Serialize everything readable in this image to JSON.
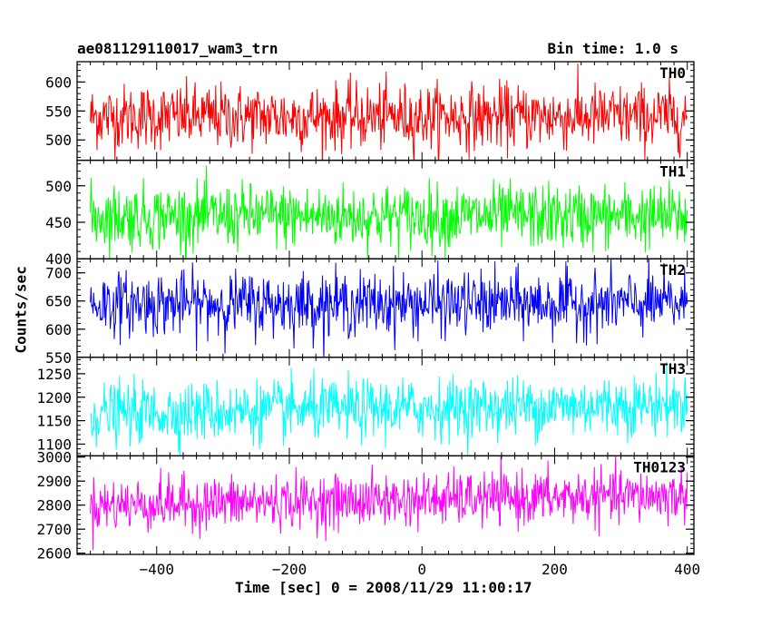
{
  "header": {
    "title": "ae081129110017_wam3_trn",
    "bin_time": "Bin time: 1.0 s"
  },
  "axes": {
    "xlabel": "Time [sec] 0 = 2008/11/29 11:00:17",
    "ylabel": "Counts/sec"
  },
  "chart_data": {
    "type": "line",
    "title": "ae081129110017_wam3_trn",
    "subtitle": "Bin time: 1.0 s",
    "xlabel": "Time [sec] 0 = 2008/11/29 11:00:17",
    "ylabel": "Counts/sec",
    "xlim": [
      -520,
      410
    ],
    "x_range": [
      -500,
      400
    ],
    "x_step": 1.0,
    "x_ticks": [
      -400,
      -200,
      0,
      200,
      400
    ],
    "grid": false,
    "legend": "per-panel label at top-right",
    "panels": [
      {
        "name": "TH0",
        "color": "#ff0000",
        "ylim": [
          465,
          635
        ],
        "yticks": [
          500,
          550,
          600
        ],
        "mean": 540,
        "spread": 28,
        "trend": 0
      },
      {
        "name": "TH1",
        "color": "#00ff00",
        "ylim": [
          400,
          535
        ],
        "yticks": [
          400,
          450,
          500
        ],
        "mean": 458,
        "spread": 22,
        "trend": 0
      },
      {
        "name": "TH2",
        "color": "#0000ff",
        "ylim": [
          550,
          725
        ],
        "yticks": [
          550,
          600,
          650,
          700
        ],
        "mean": 645,
        "spread": 28,
        "trend": 0
      },
      {
        "name": "TH3",
        "color": "#00ffff",
        "ylim": [
          1075,
          1285
        ],
        "yticks": [
          1100,
          1150,
          1200,
          1250
        ],
        "mean": 1165,
        "spread": 32,
        "trend": 20
      },
      {
        "name": "TH0123",
        "color": "#ff00ff",
        "ylim": [
          2595,
          3005
        ],
        "yticks": [
          2600,
          2700,
          2800,
          2900,
          3000
        ],
        "mean": 2800,
        "spread": 55,
        "trend": 40
      }
    ]
  }
}
